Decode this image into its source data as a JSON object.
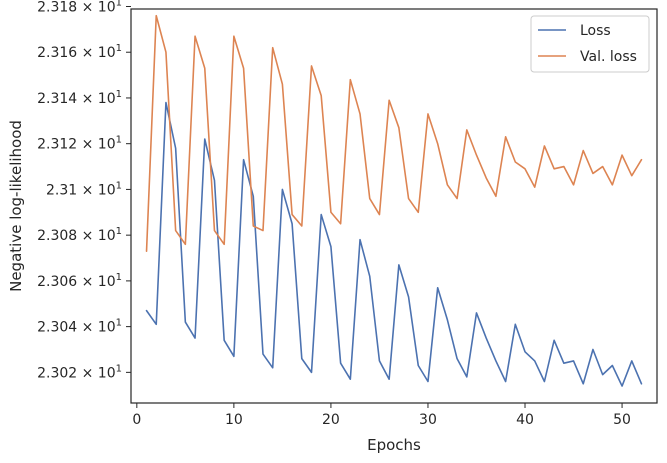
{
  "chart_data": {
    "type": "line",
    "xlabel": "Epochs",
    "ylabel": "Negative log-likelihood",
    "xlim": [
      -0.6,
      53.6
    ],
    "ylim": [
      23.0066,
      23.1789
    ],
    "y_tick_format": "log-scientific",
    "x_ticks": [
      {
        "value": 0,
        "label": "0"
      },
      {
        "value": 10,
        "label": "10"
      },
      {
        "value": 20,
        "label": "20"
      },
      {
        "value": 30,
        "label": "30"
      },
      {
        "value": 40,
        "label": "40"
      },
      {
        "value": 50,
        "label": "50"
      }
    ],
    "y_ticks": [
      {
        "value": 23.02,
        "mantissa": "2.302"
      },
      {
        "value": 23.04,
        "mantissa": "2.304"
      },
      {
        "value": 23.06,
        "mantissa": "2.306"
      },
      {
        "value": 23.08,
        "mantissa": "2.308"
      },
      {
        "value": 23.1,
        "mantissa": "2.31"
      },
      {
        "value": 23.12,
        "mantissa": "2.312"
      },
      {
        "value": 23.14,
        "mantissa": "2.314"
      },
      {
        "value": 23.16,
        "mantissa": "2.316"
      },
      {
        "value": 23.18,
        "mantissa": "2.318"
      }
    ],
    "y_tick_exponent_base": "10",
    "y_tick_exponent": "1",
    "legend_position": "top-right",
    "x": [
      1,
      2,
      3,
      4,
      5,
      6,
      7,
      8,
      9,
      10,
      11,
      12,
      13,
      14,
      15,
      16,
      17,
      18,
      19,
      20,
      21,
      22,
      23,
      24,
      25,
      26,
      27,
      28,
      29,
      30,
      31,
      32,
      33,
      34,
      35,
      36,
      37,
      38,
      39,
      40,
      41,
      42,
      43,
      44,
      45,
      46,
      47,
      48,
      49,
      50,
      51,
      52
    ],
    "series": [
      {
        "name": "Loss",
        "color": "#4c72b0",
        "values": [
          23.047,
          23.041,
          23.138,
          23.118,
          23.042,
          23.035,
          23.122,
          23.104,
          23.034,
          23.027,
          23.113,
          23.097,
          23.028,
          23.022,
          23.1,
          23.085,
          23.026,
          23.02,
          23.089,
          23.075,
          23.024,
          23.017,
          23.078,
          23.062,
          23.025,
          23.017,
          23.067,
          23.053,
          23.023,
          23.016,
          23.057,
          23.043,
          23.026,
          23.018,
          23.046,
          23.035,
          23.025,
          23.016,
          23.041,
          23.029,
          23.025,
          23.016,
          23.034,
          23.024,
          23.025,
          23.015,
          23.03,
          23.019,
          23.023,
          23.014,
          23.025,
          23.015
        ]
      },
      {
        "name": "Val. loss",
        "color": "#dd8452",
        "values": [
          23.073,
          23.176,
          23.16,
          23.082,
          23.076,
          23.167,
          23.153,
          23.082,
          23.076,
          23.167,
          23.153,
          23.084,
          23.082,
          23.162,
          23.146,
          23.089,
          23.084,
          23.154,
          23.141,
          23.09,
          23.085,
          23.148,
          23.133,
          23.096,
          23.089,
          23.139,
          23.127,
          23.096,
          23.09,
          23.133,
          23.12,
          23.102,
          23.096,
          23.126,
          23.115,
          23.105,
          23.097,
          23.123,
          23.112,
          23.109,
          23.101,
          23.119,
          23.109,
          23.11,
          23.102,
          23.117,
          23.107,
          23.11,
          23.102,
          23.115,
          23.106,
          23.113
        ]
      }
    ]
  }
}
